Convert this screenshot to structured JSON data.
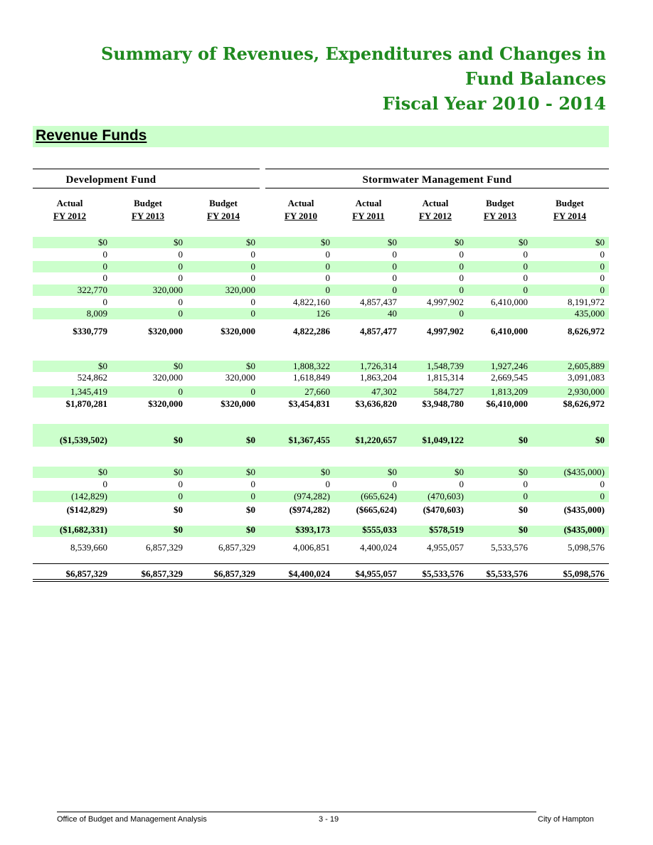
{
  "title": {
    "line1": "Summary of Revenues, Expenditures and Changes in",
    "line2": "Fund Balances",
    "line3": "Fiscal Year 2010 - 2014"
  },
  "section": "Revenue Funds",
  "funds": {
    "development": "Development Fund",
    "stormwater": "Stormwater Management Fund"
  },
  "columns": [
    {
      "type": "Actual",
      "year": "FY 2012"
    },
    {
      "type": "Budget",
      "year": "FY 2013"
    },
    {
      "type": "Budget",
      "year": "FY 2014"
    },
    {
      "type": "Actual",
      "year": "FY 2010"
    },
    {
      "type": "Actual",
      "year": "FY 2011"
    },
    {
      "type": "Actual",
      "year": "FY 2012"
    },
    {
      "type": "Budget",
      "year": "FY 2013"
    },
    {
      "type": "Budget",
      "year": "FY 2014"
    }
  ],
  "rows": [
    {
      "cells": [
        "$0",
        "$0",
        "$0",
        "$0",
        "$0",
        "$0",
        "$0",
        "$0"
      ]
    },
    {
      "cells": [
        "0",
        "0",
        "0",
        "0",
        "0",
        "0",
        "0",
        "0"
      ]
    },
    {
      "cells": [
        "0",
        "0",
        "0",
        "0",
        "0",
        "0",
        "0",
        "0"
      ]
    },
    {
      "cells": [
        "0",
        "0",
        "0",
        "0",
        "0",
        "0",
        "0",
        "0"
      ]
    },
    {
      "cells": [
        "322,770",
        "320,000",
        "320,000",
        "0",
        "0",
        "0",
        "0",
        "0"
      ]
    },
    {
      "cells": [
        "0",
        "0",
        "0",
        "4,822,160",
        "4,857,437",
        "4,997,902",
        "6,410,000",
        "8,191,972"
      ]
    },
    {
      "cells": [
        "8,009",
        "0",
        "0",
        "126",
        "40",
        "0",
        "",
        "435,000"
      ]
    },
    {
      "cells": [
        "$330,779",
        "$320,000",
        "$320,000",
        "4,822,286",
        "4,857,477",
        "4,997,902",
        "6,410,000",
        "8,626,972"
      ]
    },
    {
      "cells": [
        "$0",
        "$0",
        "$0",
        "1,808,322",
        "1,726,314",
        "1,548,739",
        "1,927,246",
        "2,605,889"
      ]
    },
    {
      "cells": [
        "524,862",
        "320,000",
        "320,000",
        "1,618,849",
        "1,863,204",
        "1,815,314",
        "2,669,545",
        "3,091,083"
      ]
    },
    {
      "cells": [
        "1,345,419",
        "0",
        "0",
        "27,660",
        "47,302",
        "584,727",
        "1,813,209",
        "2,930,000"
      ]
    },
    {
      "cells": [
        "$1,870,281",
        "$320,000",
        "$320,000",
        "$3,454,831",
        "$3,636,820",
        "$3,948,780",
        "$6,410,000",
        "$8,626,972"
      ]
    },
    {
      "cells": [
        "($1,539,502)",
        "$0",
        "$0",
        "$1,367,455",
        "$1,220,657",
        "$1,049,122",
        "$0",
        "$0"
      ]
    },
    {
      "cells": [
        "$0",
        "$0",
        "$0",
        "$0",
        "$0",
        "$0",
        "$0",
        "($435,000)"
      ]
    },
    {
      "cells": [
        "0",
        "0",
        "0",
        "0",
        "0",
        "0",
        "0",
        "0"
      ]
    },
    {
      "cells": [
        "(142,829)",
        "0",
        "0",
        "(974,282)",
        "(665,624)",
        "(470,603)",
        "0",
        "0"
      ]
    },
    {
      "cells": [
        "($142,829)",
        "$0",
        "$0",
        "($974,282)",
        "($665,624)",
        "($470,603)",
        "$0",
        "($435,000)"
      ]
    },
    {
      "cells": [
        "($1,682,331)",
        "$0",
        "$0",
        "$393,173",
        "$555,033",
        "$578,519",
        "$0",
        "($435,000)"
      ]
    },
    {
      "cells": [
        "8,539,660",
        "6,857,329",
        "6,857,329",
        "4,006,851",
        "4,400,024",
        "4,955,057",
        "5,533,576",
        "5,098,576"
      ]
    },
    {
      "cells": [
        "$6,857,329",
        "$6,857,329",
        "$6,857,329",
        "$4,400,024",
        "$4,955,057",
        "$5,533,576",
        "$5,533,576",
        "$5,098,576"
      ]
    }
  ],
  "footer": {
    "left": "Office of Budget and Management Analysis",
    "center": "3 - 19",
    "right": "City of Hampton"
  }
}
